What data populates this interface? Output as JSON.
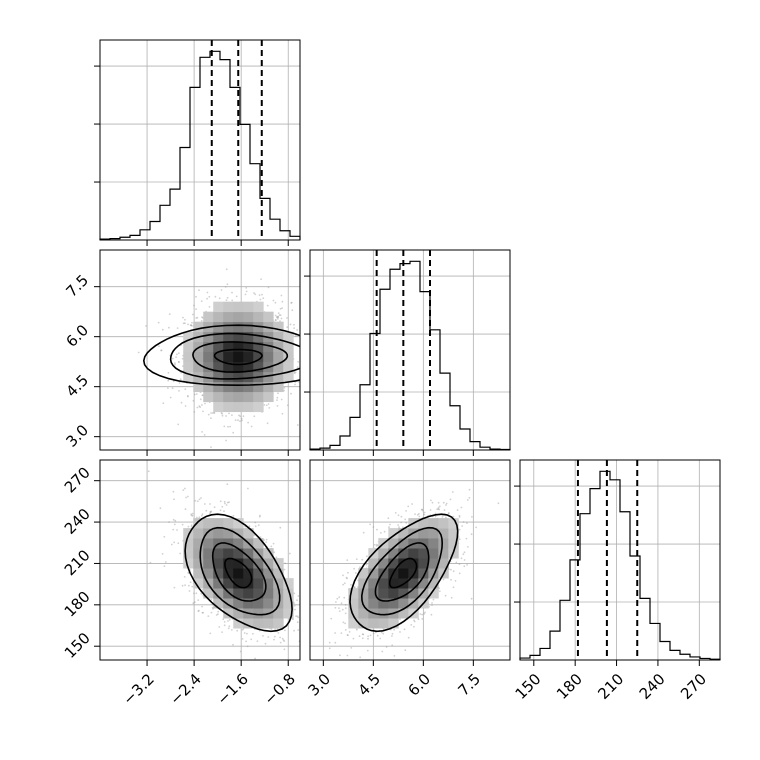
{
  "chart_data": {
    "type": "corner",
    "params": [
      {
        "range": [
          -4.0,
          -0.6
        ],
        "ticks": [
          -3.2,
          -2.4,
          -1.6,
          -0.8
        ],
        "tick_labels": [
          "−3.2",
          "−2.4",
          "−1.6",
          "−0.8"
        ],
        "mean": -1.65,
        "sd": 0.45,
        "quantiles": [
          -2.1,
          -1.65,
          -1.25
        ]
      },
      {
        "range": [
          2.6,
          8.6
        ],
        "ticks": [
          3.0,
          4.5,
          6.0,
          7.5
        ],
        "tick_labels": [
          "3.0",
          "4.5",
          "6.0",
          "7.5"
        ],
        "mean": 5.4,
        "sd": 0.8,
        "quantiles": [
          4.6,
          5.4,
          6.2
        ]
      },
      {
        "range": [
          140,
          285
        ],
        "ticks": [
          150,
          180,
          210,
          240,
          270
        ],
        "tick_labels": [
          "150",
          "180",
          "210",
          "240",
          "270"
        ],
        "mean": 203,
        "sd": 21,
        "quantiles": [
          182,
          203,
          225
        ]
      }
    ],
    "correlations": {
      "0_1": 0.0,
      "0_2": -0.5,
      "1_2": 0.6
    },
    "histograms": {
      "0": {
        "bins": [
          -4.0,
          -3.83,
          -3.66,
          -3.49,
          -3.32,
          -3.15,
          -2.98,
          -2.81,
          -2.64,
          -2.47,
          -2.3,
          -2.13,
          -1.96,
          -1.79,
          -1.62,
          -1.45,
          -1.28,
          -1.11,
          -0.94,
          -0.77,
          -0.6
        ],
        "counts": [
          2,
          3,
          6,
          10,
          22,
          40,
          75,
          110,
          200,
          330,
          395,
          408,
          390,
          330,
          250,
          165,
          90,
          45,
          20,
          8
        ]
      },
      "1": {
        "bins": [
          2.6,
          2.9,
          3.2,
          3.5,
          3.8,
          4.1,
          4.4,
          4.7,
          5.0,
          5.3,
          5.6,
          5.9,
          6.2,
          6.5,
          6.8,
          7.1,
          7.4,
          7.7,
          8.0,
          8.3,
          8.6
        ],
        "counts": [
          2,
          4,
          10,
          30,
          70,
          140,
          250,
          345,
          388,
          400,
          405,
          340,
          258,
          165,
          95,
          45,
          18,
          6,
          2,
          1
        ]
      },
      "2": {
        "bins": [
          140,
          147.25,
          154.5,
          161.75,
          169,
          176.25,
          183.5,
          190.75,
          198,
          205.25,
          212.5,
          219.75,
          227,
          234.25,
          241.5,
          248.75,
          256,
          263.25,
          270.5,
          277.75,
          285
        ],
        "counts": [
          5,
          12,
          30,
          75,
          155,
          260,
          380,
          445,
          490,
          468,
          385,
          270,
          160,
          95,
          48,
          25,
          15,
          8,
          4,
          2
        ]
      }
    },
    "pairs": [
      {
        "x": 0,
        "y": 1
      },
      {
        "x": 0,
        "y": 2
      },
      {
        "x": 1,
        "y": 2
      }
    ],
    "contour_levels": 4,
    "grid": true
  }
}
